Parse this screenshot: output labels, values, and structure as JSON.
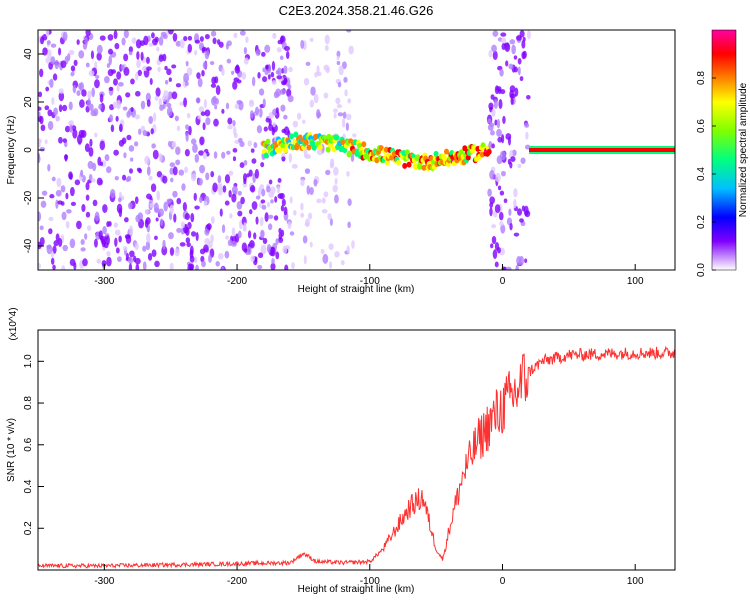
{
  "title": "C2E3.2024.358.21.46.G26",
  "chart_data": [
    {
      "type": "heatmap",
      "xlabel": "Height of straight line (km)",
      "ylabel": "Frequency (Hz)",
      "xlim": [
        -350,
        130
      ],
      "ylim": [
        -50,
        50
      ],
      "x_ticks": [
        -300,
        -200,
        -100,
        0,
        100
      ],
      "y_ticks": [
        -40,
        -20,
        0,
        20,
        40
      ],
      "colorbar": {
        "label": "Normalized spectral amplitude",
        "range": [
          0.0,
          1.0
        ],
        "ticks": [
          "0.0",
          "0.2",
          "0.4",
          "0.6",
          "0.8"
        ],
        "colormap": [
          "#ffffff",
          "#8000ff",
          "#0000ff",
          "#00c0ff",
          "#00ff80",
          "#80ff00",
          "#ffff00",
          "#ff8000",
          "#ff0000",
          "#ff00a0"
        ]
      },
      "regions": [
        {
          "x": [
            -350,
            -160
          ],
          "f": [
            -50,
            50
          ],
          "amplitude": 0.12,
          "pattern": "scattered noise"
        },
        {
          "x": [
            -160,
            -110
          ],
          "f": [
            -50,
            50
          ],
          "amplitude": 0.06,
          "pattern": "faint noise"
        },
        {
          "x": [
            -180,
            -10
          ],
          "f_center": [
            0,
            4,
            3,
            0,
            -3,
            -5,
            -3,
            0
          ],
          "amplitude": 0.5,
          "pattern": "wavy signal trace"
        },
        {
          "x": [
            -10,
            20
          ],
          "f": [
            -50,
            50
          ],
          "amplitude": 0.15,
          "pattern": "noise band"
        },
        {
          "x": [
            20,
            130
          ],
          "f": [
            0,
            0
          ],
          "amplitude": 0.9,
          "pattern": "stable tone"
        }
      ]
    },
    {
      "type": "line",
      "xlabel": "Height of straight line (km)",
      "ylabel": "SNR (10 * v/v)",
      "y_multiplier": "(x10^4)",
      "xlim": [
        -350,
        130
      ],
      "ylim": [
        0.0,
        1.15
      ],
      "x_ticks": [
        -300,
        -200,
        -100,
        0,
        100
      ],
      "y_ticks": [
        "0.2",
        "0.4",
        "0.6",
        "0.8",
        "1.0"
      ],
      "series": [
        {
          "color": "#ff3030",
          "x": [
            -350,
            -300,
            -250,
            -200,
            -160,
            -150,
            -140,
            -120,
            -100,
            -90,
            -80,
            -70,
            -60,
            -50,
            -45,
            -40,
            -30,
            -20,
            -10,
            0,
            10,
            20,
            30,
            50,
            100,
            130
          ],
          "y": [
            0.02,
            0.02,
            0.025,
            0.03,
            0.035,
            0.08,
            0.04,
            0.035,
            0.04,
            0.1,
            0.2,
            0.3,
            0.35,
            0.1,
            0.05,
            0.2,
            0.45,
            0.6,
            0.7,
            0.78,
            0.85,
            0.95,
            1.0,
            1.03,
            1.04,
            1.04
          ]
        }
      ]
    }
  ]
}
